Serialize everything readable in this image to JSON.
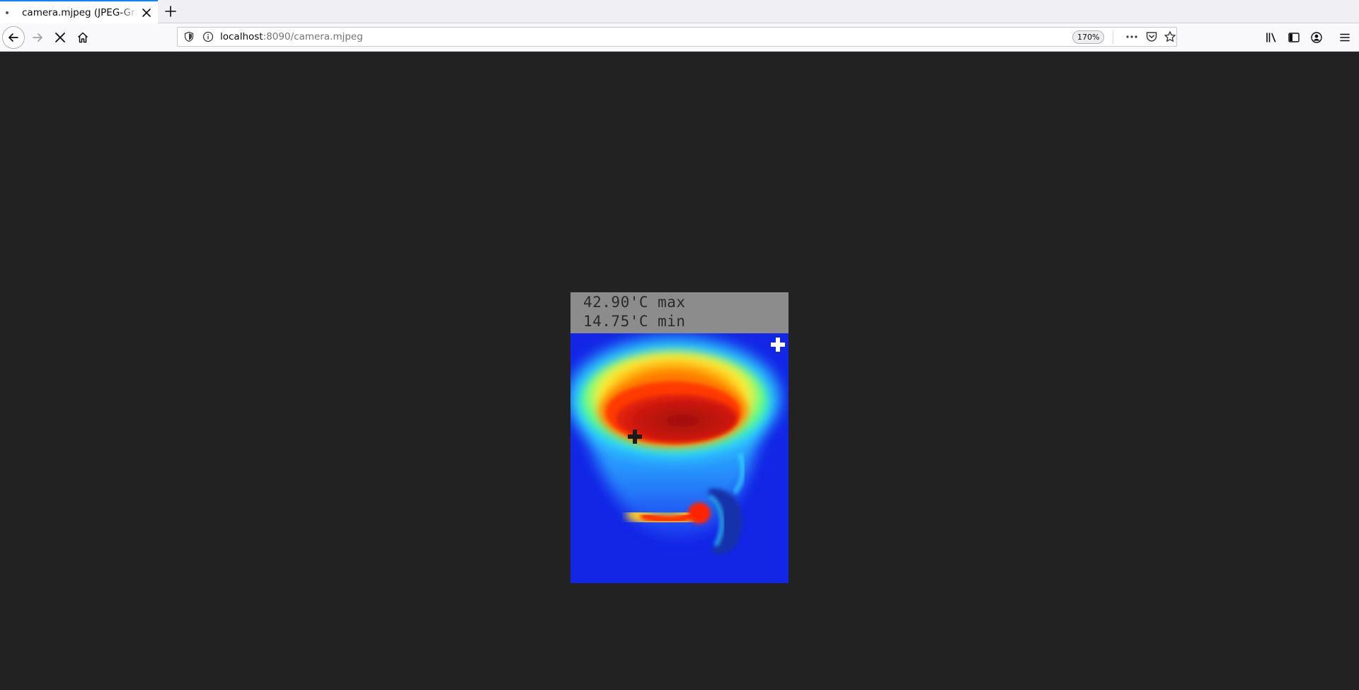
{
  "tab": {
    "title": "camera.mjpeg (JPEG-Grafik"
  },
  "urlbar": {
    "host": "localhost",
    "path": ":8090/camera.mjpeg",
    "zoom": "170%"
  },
  "camera": {
    "max_label": "42.90'C max",
    "min_label": "14.75'C min"
  },
  "icons": {
    "tab_close": "close-icon",
    "new_tab": "plus-icon",
    "back": "arrow-left-icon",
    "forward": "arrow-right-icon",
    "stop": "stop-icon",
    "home": "home-icon",
    "shield": "shield-icon",
    "info": "info-icon",
    "more": "more-icon",
    "pocket": "pocket-icon",
    "bookmark": "star-icon",
    "library": "library-icon",
    "sidebar": "sidebar-icon",
    "account": "account-icon",
    "menu": "hamburger-icon"
  },
  "colors": {
    "tab_accent": "#0a84ff",
    "page_bg": "#222222",
    "thermal_cold": "#1326e6",
    "thermal_hot": "#c0160c"
  }
}
